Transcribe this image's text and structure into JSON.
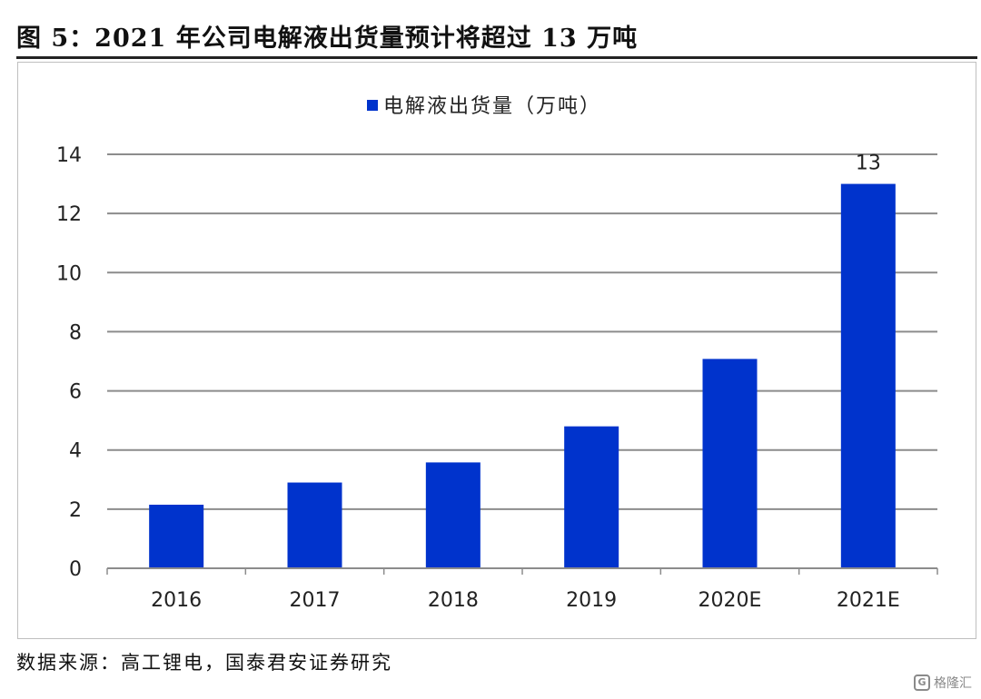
{
  "figure": {
    "title": "图 5：2021 年公司电解液出货量预计将超过 13  万吨",
    "source": "数据来源：高工锂电，国泰君安证券研究",
    "watermark_text": "格隆汇",
    "watermark_icon": "G"
  },
  "colors": {
    "bar": "#0033cc",
    "grid": "#8c8c8c",
    "axis": "#8c8c8c",
    "text": "#222222"
  },
  "chart_data": {
    "type": "bar",
    "categories": [
      "2016",
      "2017",
      "2018",
      "2019",
      "2020E",
      "2021E"
    ],
    "series": [
      {
        "name": "电解液出货量（万吨）",
        "values": [
          2.15,
          2.9,
          3.58,
          4.8,
          7.08,
          13
        ]
      }
    ],
    "data_labels": [
      null,
      null,
      null,
      null,
      null,
      "13"
    ],
    "ylim": [
      0,
      14
    ],
    "yticks": [
      0,
      2,
      4,
      6,
      8,
      10,
      12,
      14
    ],
    "grid": true,
    "legend": "top-center"
  }
}
